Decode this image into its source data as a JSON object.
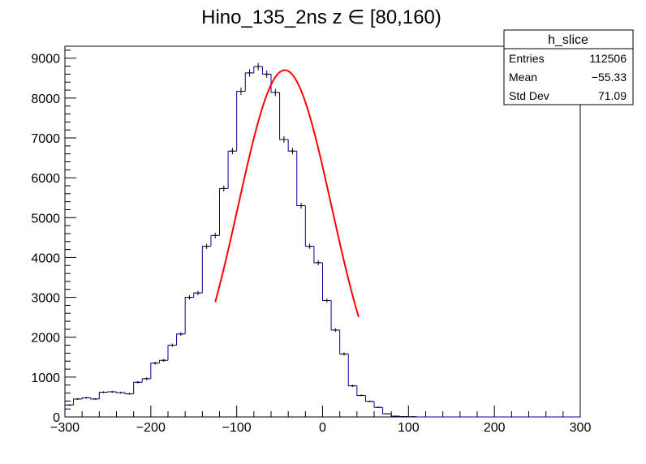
{
  "chart_data": {
    "type": "bar",
    "title": "Hino_135_2ns z  ∈ [80,160)",
    "xlabel": "",
    "ylabel": "",
    "xlim": [
      -300,
      300
    ],
    "ylim": [
      0,
      9300
    ],
    "x_ticks": [
      -300,
      -200,
      -100,
      0,
      100,
      200,
      300
    ],
    "y_ticks": [
      0,
      1000,
      2000,
      3000,
      4000,
      5000,
      6000,
      7000,
      8000,
      9000
    ],
    "bin_width": 10,
    "bin_edges_start": -300,
    "histogram_color": "#000099",
    "fit_color": "#ff0000",
    "values": [
      300,
      450,
      480,
      450,
      620,
      630,
      610,
      580,
      870,
      960,
      1350,
      1420,
      1800,
      2080,
      3000,
      3110,
      4280,
      4550,
      5730,
      6670,
      8170,
      8630,
      8790,
      8600,
      8140,
      6960,
      6670,
      5300,
      4280,
      3870,
      2920,
      2180,
      1580,
      780,
      540,
      390,
      240,
      80,
      20,
      10,
      5,
      0,
      0,
      0,
      0,
      0,
      0,
      0,
      0,
      0,
      0,
      0,
      0,
      0,
      0,
      0,
      0,
      0,
      0,
      0
    ],
    "fit": {
      "type": "gaussian",
      "constant": 8700,
      "mean": -44,
      "sigma": 54.5,
      "range": [
        -125,
        42
      ]
    },
    "legend": {
      "placement": "top-right",
      "title": "h_slice",
      "rows": [
        {
          "label": "Entries",
          "value": "112506"
        },
        {
          "label": "Mean",
          "value": "−55.33"
        },
        {
          "label": "Std Dev",
          "value": "71.09"
        }
      ]
    }
  }
}
